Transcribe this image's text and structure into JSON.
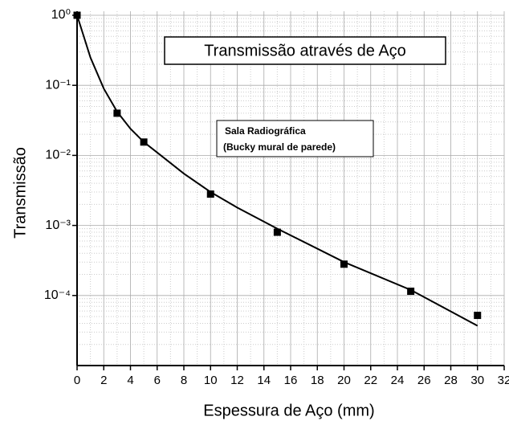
{
  "chart_data": {
    "type": "scatter",
    "title": "Transmissão através de Aço",
    "annotation": [
      "Sala Radiográfica",
      "(Bucky mural de parede)"
    ],
    "x_label": "Espessura de Aço (mm)",
    "y_label": "Transmissão",
    "y_scale": "log",
    "grid": true,
    "minor_grid": true,
    "color": "#000000",
    "points": {
      "x": [
        0,
        3,
        5,
        10,
        15,
        20,
        25,
        30
      ],
      "y": [
        1,
        0.04,
        0.0155,
        0.0028,
        0.0008,
        0.00028,
        0.000115,
        5.2e-05
      ]
    },
    "fit": {
      "x": [
        0,
        0.5,
        1,
        2,
        3,
        4,
        5,
        6,
        8,
        10,
        12,
        15,
        20,
        25,
        30
      ],
      "y": [
        1,
        0.5,
        0.25,
        0.09,
        0.042,
        0.024,
        0.0155,
        0.011,
        0.0055,
        0.003,
        0.0018,
        0.0009,
        0.0003,
        0.00012,
        3.7e-05
      ]
    },
    "xlim": [
      0,
      32
    ],
    "xticks": [
      0,
      2,
      4,
      6,
      8,
      10,
      12,
      14,
      16,
      18,
      20,
      22,
      24,
      26,
      28,
      30,
      32
    ],
    "ylim": [
      1e-05,
      1
    ],
    "yticks": [
      {
        "value": 1,
        "label": "10⁰"
      },
      {
        "value": 0.1,
        "label": "10⁻¹"
      },
      {
        "value": 0.01,
        "label": "10⁻²"
      },
      {
        "value": 0.001,
        "label": "10⁻³"
      },
      {
        "value": 0.0001,
        "label": "10⁻⁴"
      }
    ]
  }
}
